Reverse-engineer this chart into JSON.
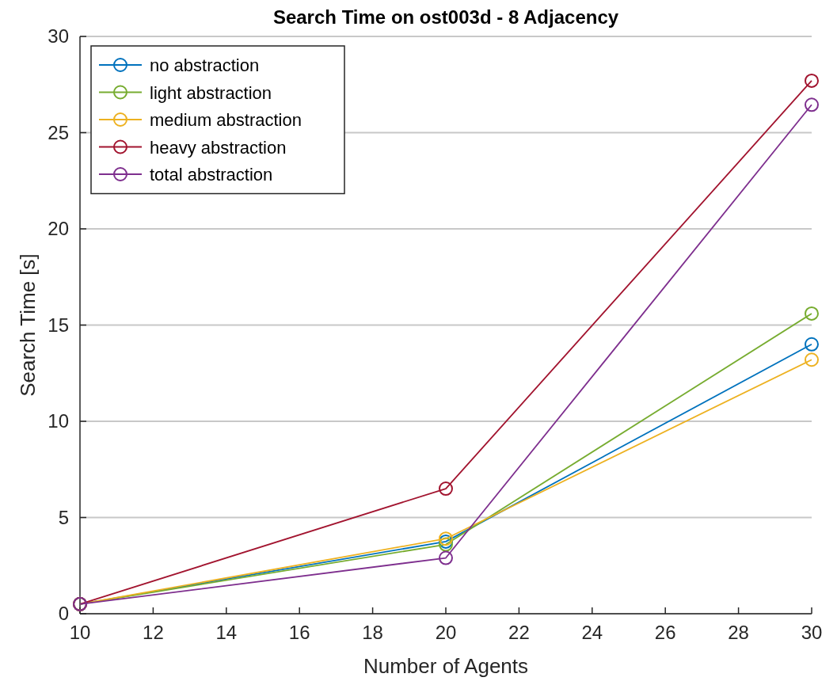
{
  "chart_data": {
    "type": "line",
    "title": "Search Time on ost003d - 8 Adjacency",
    "xlabel": "Number of Agents",
    "ylabel": "Search Time [s]",
    "x": [
      10,
      20,
      30
    ],
    "xlim": [
      10,
      30
    ],
    "xticks": [
      10,
      12,
      14,
      16,
      18,
      20,
      22,
      24,
      26,
      28,
      30
    ],
    "ylim": [
      0,
      30
    ],
    "yticks": [
      0,
      5,
      10,
      15,
      20,
      25,
      30
    ],
    "grid": "y",
    "legend": "top left",
    "marker": "circle",
    "line_style": "solid",
    "series": [
      {
        "name": "no abstraction",
        "color": "#0072bd",
        "values": [
          0.5,
          3.75,
          14.0
        ]
      },
      {
        "name": "light abstraction",
        "color": "#77ac30",
        "values": [
          0.5,
          3.6,
          15.6
        ]
      },
      {
        "name": "medium abstraction",
        "color": "#edb120",
        "values": [
          0.5,
          3.9,
          13.2
        ]
      },
      {
        "name": "heavy abstraction",
        "color": "#a2142f",
        "values": [
          0.5,
          6.5,
          27.7
        ]
      },
      {
        "name": "total abstraction",
        "color": "#7e2f8e",
        "values": [
          0.5,
          2.9,
          26.45
        ]
      }
    ]
  }
}
